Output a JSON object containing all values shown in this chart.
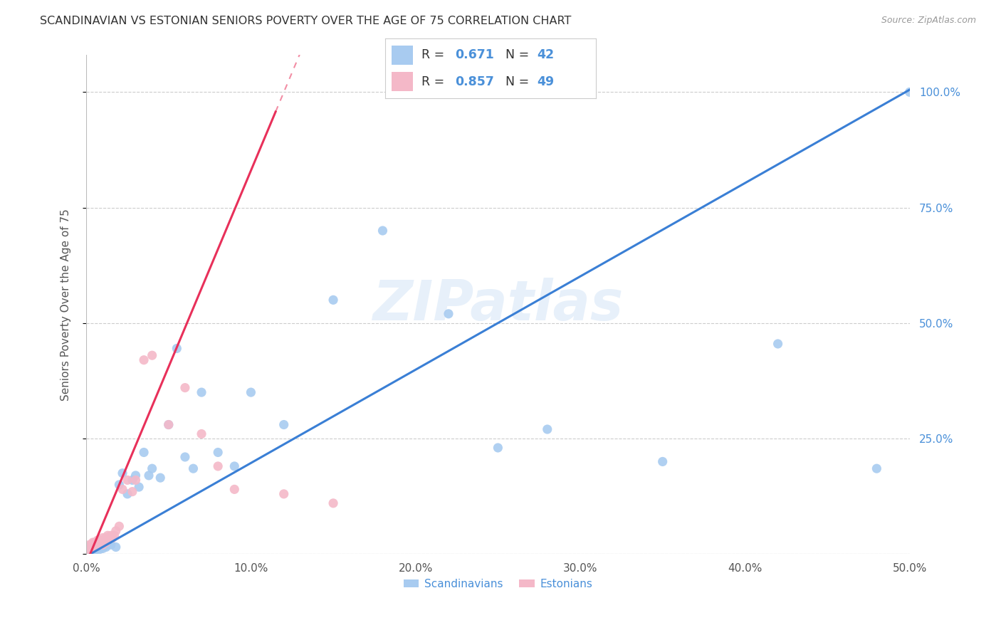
{
  "title": "SCANDINAVIAN VS ESTONIAN SENIORS POVERTY OVER THE AGE OF 75 CORRELATION CHART",
  "source": "Source: ZipAtlas.com",
  "ylabel": "Seniors Poverty Over the Age of 75",
  "watermark": "ZIPatlas",
  "xmin": 0.0,
  "xmax": 0.5,
  "ymin": 0.0,
  "ymax": 1.08,
  "xticks": [
    0.0,
    0.1,
    0.2,
    0.3,
    0.4,
    0.5
  ],
  "xtick_labels": [
    "0.0%",
    "10.0%",
    "20.0%",
    "30.0%",
    "40.0%",
    "50.0%"
  ],
  "yticks": [
    0.0,
    0.25,
    0.5,
    0.75,
    1.0
  ],
  "ytick_labels": [
    "",
    "25.0%",
    "50.0%",
    "75.0%",
    "100.0%"
  ],
  "legend_blue_label": "Scandinavians",
  "legend_pink_label": "Estonians",
  "R_blue": 0.671,
  "N_blue": 42,
  "R_pink": 0.857,
  "N_pink": 49,
  "blue_color": "#A8CBF0",
  "pink_color": "#F4B8C8",
  "blue_line_color": "#3A7FD5",
  "pink_line_color": "#E8305A",
  "grid_color": "#CCCCCC",
  "background_color": "#FFFFFF",
  "right_axis_color": "#4A90D9",
  "blue_regression_slope": 2.02,
  "blue_regression_intercept": -0.005,
  "pink_regression_slope": 8.5,
  "pink_regression_intercept": -0.02,
  "scandinavians_x": [
    0.001,
    0.002,
    0.003,
    0.004,
    0.005,
    0.006,
    0.007,
    0.008,
    0.009,
    0.01,
    0.012,
    0.013,
    0.015,
    0.018,
    0.02,
    0.022,
    0.025,
    0.028,
    0.03,
    0.032,
    0.035,
    0.038,
    0.04,
    0.045,
    0.05,
    0.055,
    0.06,
    0.065,
    0.07,
    0.08,
    0.09,
    0.1,
    0.12,
    0.15,
    0.18,
    0.22,
    0.25,
    0.28,
    0.35,
    0.42,
    0.48,
    0.5
  ],
  "scandinavians_y": [
    0.005,
    0.01,
    0.008,
    0.012,
    0.008,
    0.01,
    0.012,
    0.01,
    0.015,
    0.012,
    0.015,
    0.02,
    0.02,
    0.015,
    0.15,
    0.175,
    0.13,
    0.16,
    0.17,
    0.145,
    0.22,
    0.17,
    0.185,
    0.165,
    0.28,
    0.445,
    0.21,
    0.185,
    0.35,
    0.22,
    0.19,
    0.35,
    0.28,
    0.55,
    0.7,
    0.52,
    0.23,
    0.27,
    0.2,
    0.455,
    0.185,
    1.0
  ],
  "estonians_x": [
    0.0003,
    0.0005,
    0.0007,
    0.001,
    0.001,
    0.0015,
    0.002,
    0.002,
    0.002,
    0.003,
    0.003,
    0.003,
    0.004,
    0.004,
    0.005,
    0.005,
    0.005,
    0.006,
    0.006,
    0.007,
    0.007,
    0.008,
    0.008,
    0.009,
    0.01,
    0.01,
    0.011,
    0.012,
    0.012,
    0.013,
    0.014,
    0.015,
    0.016,
    0.017,
    0.018,
    0.02,
    0.022,
    0.025,
    0.028,
    0.03,
    0.035,
    0.04,
    0.05,
    0.06,
    0.07,
    0.08,
    0.09,
    0.12,
    0.15
  ],
  "estonians_y": [
    0.005,
    0.008,
    0.01,
    0.012,
    0.015,
    0.01,
    0.01,
    0.015,
    0.02,
    0.01,
    0.015,
    0.02,
    0.015,
    0.025,
    0.015,
    0.02,
    0.025,
    0.02,
    0.025,
    0.02,
    0.03,
    0.025,
    0.03,
    0.025,
    0.02,
    0.035,
    0.03,
    0.025,
    0.035,
    0.04,
    0.035,
    0.04,
    0.035,
    0.04,
    0.05,
    0.06,
    0.14,
    0.16,
    0.135,
    0.16,
    0.42,
    0.43,
    0.28,
    0.36,
    0.26,
    0.19,
    0.14,
    0.13,
    0.11
  ]
}
